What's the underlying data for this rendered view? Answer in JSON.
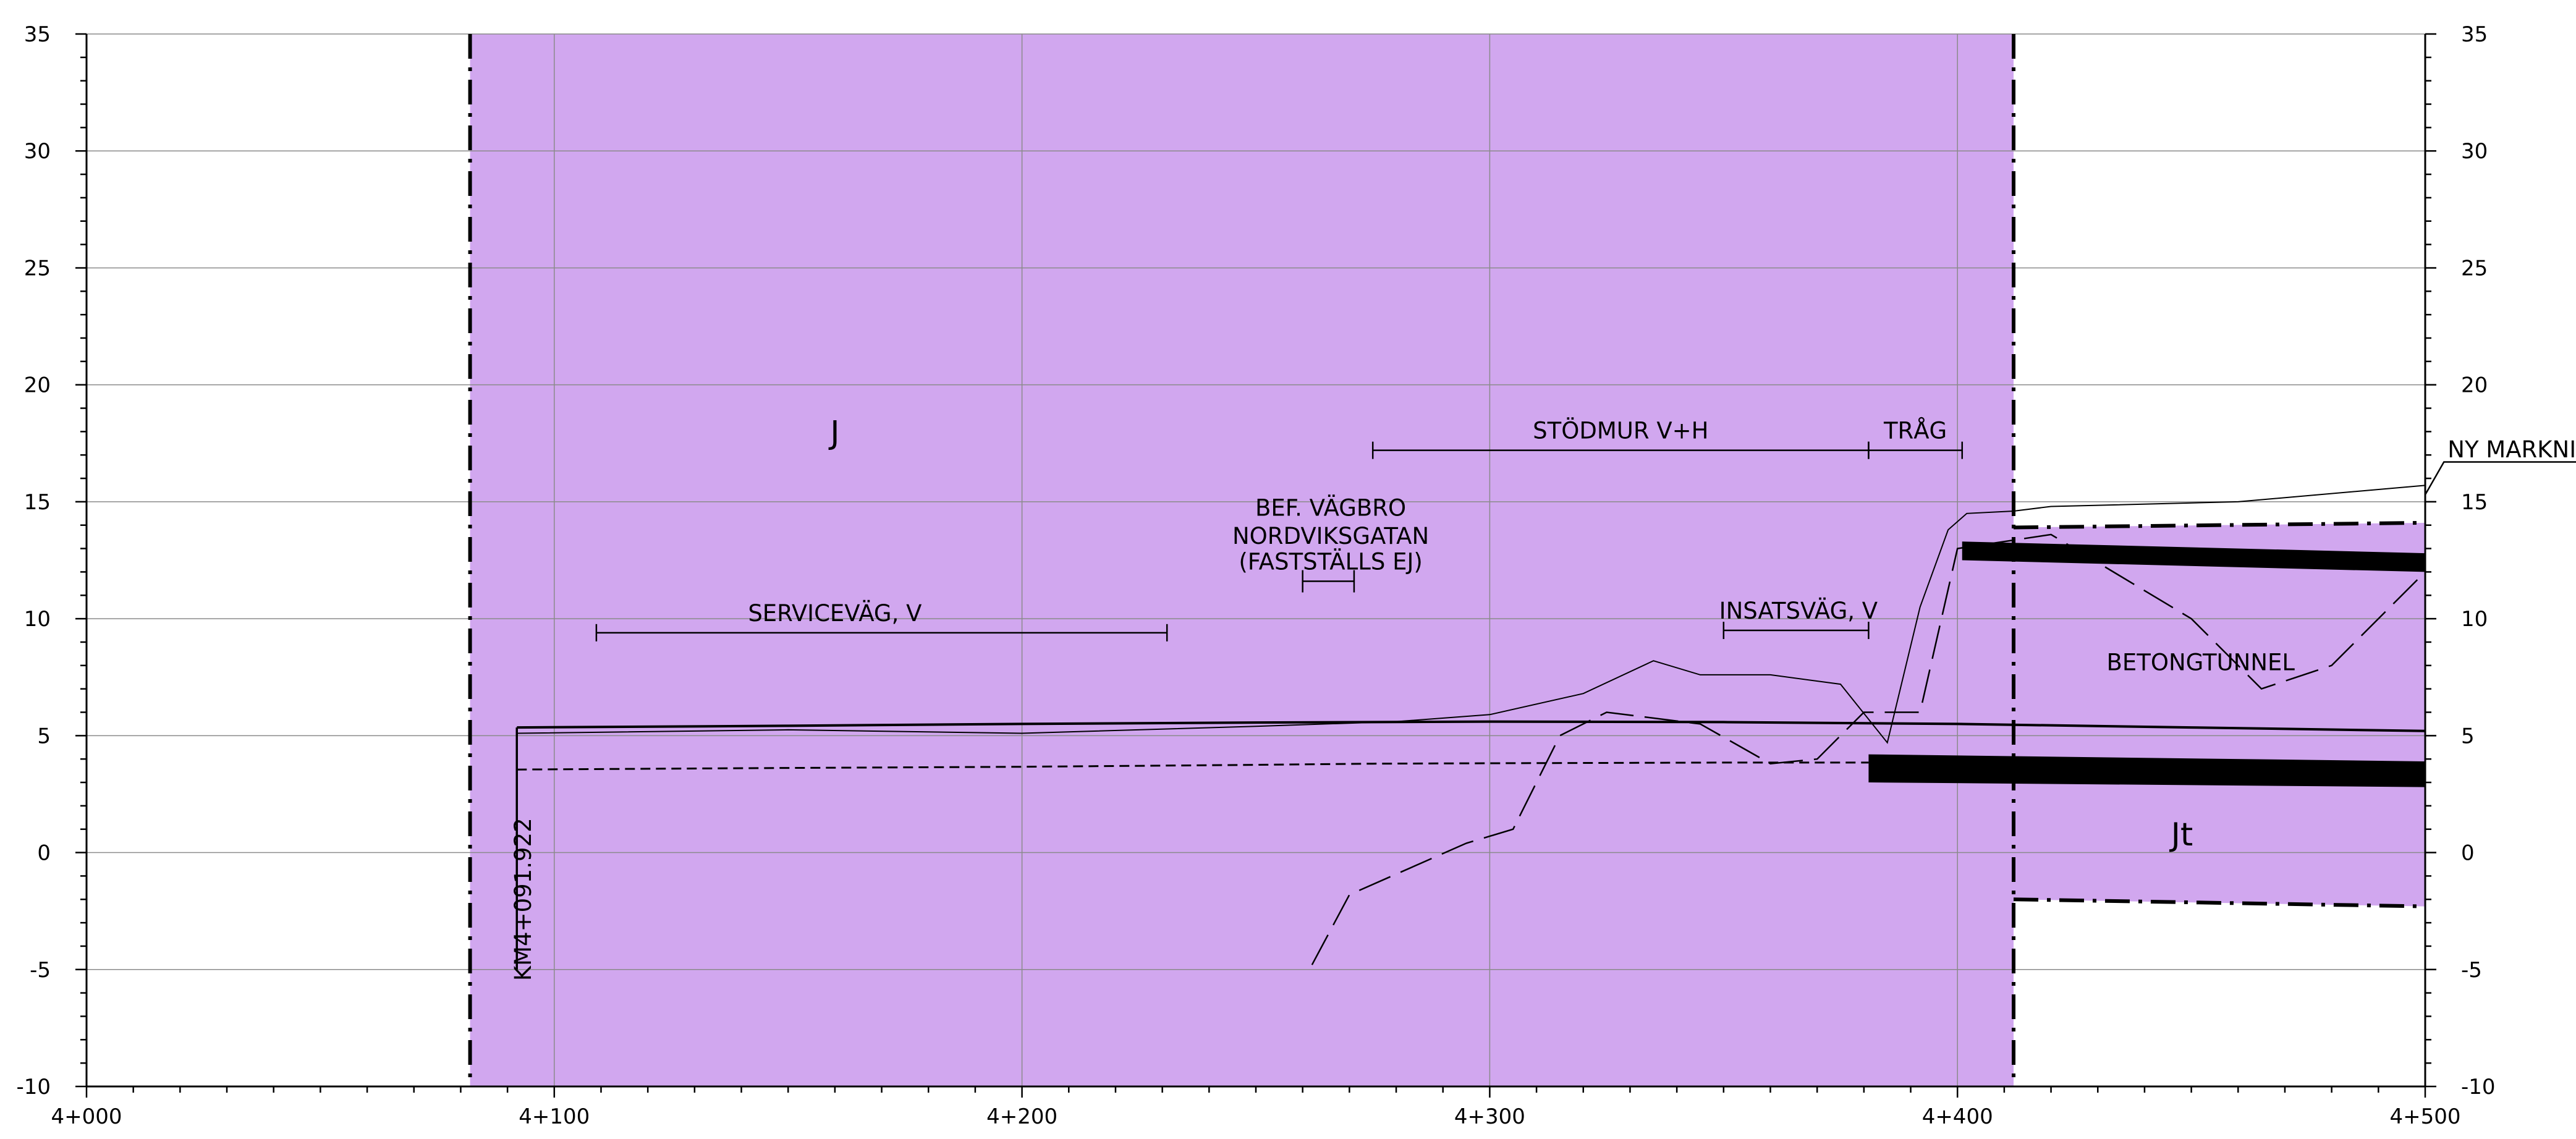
{
  "chart_data": {
    "type": "profile",
    "x_axis": {
      "range": [
        4000,
        4500
      ],
      "tick_labels": [
        {
          "value": 4000,
          "label": "4+000"
        },
        {
          "value": 4100,
          "label": "4+100"
        },
        {
          "value": 4200,
          "label": "4+200"
        },
        {
          "value": 4300,
          "label": "4+300"
        },
        {
          "value": 4400,
          "label": "4+400"
        },
        {
          "value": 4500,
          "label": "4+500"
        }
      ],
      "grid": true
    },
    "y_axis": {
      "range": [
        -10,
        35
      ],
      "tick_labels": [
        {
          "value": -10,
          "label": "-10"
        },
        {
          "value": -5,
          "label": "-5"
        },
        {
          "value": 0,
          "label": "0"
        },
        {
          "value": 5,
          "label": "5"
        },
        {
          "value": 10,
          "label": "10"
        },
        {
          "value": 15,
          "label": "15"
        },
        {
          "value": 20,
          "label": "20"
        },
        {
          "value": 25,
          "label": "25"
        },
        {
          "value": 30,
          "label": "30"
        },
        {
          "value": 35,
          "label": "35"
        }
      ],
      "grid": true,
      "both_sides": true
    },
    "colors": {
      "zone_fill": "#d1a7ef",
      "line": "#000000",
      "grid": "#8a8a8a",
      "background": "#ffffff"
    },
    "zones": [
      {
        "label": "J",
        "x_start": 4082,
        "x_end": 4412,
        "y_bottom": -10,
        "y_top": 35,
        "label_at": {
          "x": 4160,
          "y": 17.5
        }
      },
      {
        "label": "Jt",
        "x_start": 4412,
        "x_end": 4500,
        "y_bottom_start": -2,
        "y_bottom_end": -2.3,
        "y_top_start": 13.9,
        "y_top_end": 14.1,
        "label_at": {
          "x": 4448,
          "y": 0.3
        }
      }
    ],
    "annotations": [
      {
        "text": "SERVICEVÄG, V",
        "x_start": 4109,
        "x_end": 4231,
        "y": 9.4,
        "label_x": 4160,
        "label_y": 9.9
      },
      {
        "text": "BEF. VÄGBRO",
        "x": 4266,
        "y": 14.4
      },
      {
        "text": "NORDVIKSGATAN",
        "x": 4266,
        "y": 13.2
      },
      {
        "text": "(FASTSTÄLLS EJ)",
        "x": 4266,
        "y": 12.1
      },
      {
        "text": "STÖDMUR V+H",
        "x_start": 4275,
        "x_end": 4381,
        "y": 17.2,
        "label_x": 4328,
        "label_y": 17.7
      },
      {
        "text": "TRÅG",
        "x_start": 4381,
        "x_end": 4401,
        "y": 17.2,
        "label_x": 4391,
        "label_y": 17.7
      },
      {
        "text": "INSATSVÄG, V",
        "x_start": 4350,
        "x_end": 4381,
        "y": 9.5,
        "label_x": 4366,
        "label_y": 10.0
      },
      {
        "text": "BETONGTUNNEL",
        "x": 4452,
        "y": 7.8
      },
      {
        "text": "NY MARKNIVÅ",
        "x": 4504,
        "y": 16.9
      },
      {
        "text": "KM4+091.922",
        "x": 4095,
        "y": -2
      }
    ],
    "series": [
      {
        "style": "solid-profile",
        "x": [
          4092,
          4150,
          4200,
          4250,
          4300,
          4350,
          4400,
          4450,
          4500
        ],
        "y": [
          5.35,
          5.42,
          5.5,
          5.56,
          5.6,
          5.58,
          5.5,
          5.35,
          5.2
        ]
      },
      {
        "style": "dashed-profile",
        "x": [
          4092,
          4150,
          4200,
          4250,
          4275,
          4300,
          4350,
          4381
        ],
        "y": [
          3.55,
          3.62,
          3.67,
          3.75,
          3.8,
          3.82,
          3.85,
          3.85
        ]
      },
      {
        "style": "existing-ground",
        "x": [
          4092,
          4150,
          4200,
          4250,
          4280,
          4300,
          4320,
          4335,
          4345,
          4360,
          4375,
          4385,
          4392,
          4398,
          4402,
          4412,
          4420,
          4460,
          4500
        ],
        "y": [
          5.1,
          5.25,
          5.1,
          5.4,
          5.6,
          5.9,
          6.8,
          8.2,
          7.6,
          7.6,
          7.2,
          4.7,
          10.5,
          13.8,
          14.5,
          14.6,
          14.8,
          15.0,
          15.7
        ]
      },
      {
        "style": "dash-line",
        "x": [
          4262,
          4270,
          4295,
          4305,
          4315,
          4325,
          4345,
          4360,
          4370,
          4380,
          4392,
          4400,
          4420,
          4450,
          4465,
          4480,
          4500
        ],
        "y": [
          -4.8,
          -1.8,
          0.4,
          1.0,
          5.0,
          6.0,
          5.5,
          3.8,
          4.0,
          6.0,
          6.0,
          13.0,
          13.6,
          10.0,
          7.0,
          8.0,
          12.0
        ]
      }
    ],
    "slabs": [
      {
        "x_start": 4401,
        "x_end": 4500,
        "y_top_start": 13.3,
        "y_top_end": 12.8,
        "y_bottom_start": 12.5,
        "y_bottom_end": 12.0
      },
      {
        "x_start": 4381,
        "x_end": 4500,
        "y_top_start": 4.2,
        "y_top_end": 3.9,
        "y_bottom_start": 3.0,
        "y_bottom_end": 2.8
      }
    ],
    "vertical_markers": [
      {
        "x": 4082,
        "style": "dash-dot"
      },
      {
        "x": 4412,
        "style": "dash-dot"
      },
      {
        "x": 4092,
        "style": "solid",
        "y_from": -5,
        "y_to": 5.35
      }
    ]
  }
}
